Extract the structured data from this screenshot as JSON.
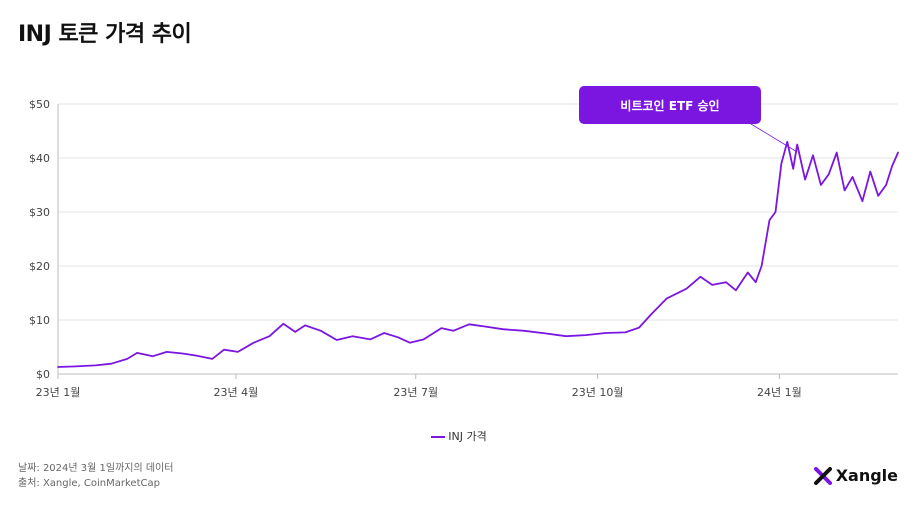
{
  "title": "INJ 토큰 가격 추이",
  "legend": {
    "label": "INJ 가격"
  },
  "footnotes": {
    "date": "날짜: 2024년 3월 1일까지의 데이터",
    "source": "출처: Xangle, CoinMarketCap"
  },
  "brand": {
    "name": "Xangle",
    "icon": "x-logo-icon"
  },
  "colors": {
    "series": "#7a16e0",
    "callout": "#7a16e0",
    "grid": "#e6e6e6",
    "axis": "#bdbdbd"
  },
  "chart_data": {
    "type": "line",
    "title": "INJ 토큰 가격 추이",
    "xlabel": "",
    "ylabel": "",
    "ylim": [
      0,
      50
    ],
    "grid": true,
    "legend_position": "bottom",
    "y_ticks": [
      0,
      10,
      20,
      30,
      40,
      50
    ],
    "y_tick_labels": [
      "$0",
      "$10",
      "$20",
      "$30",
      "$40",
      "$50"
    ],
    "x_tick_labels": [
      {
        "x": "2023-01-01",
        "label": "23년 1월"
      },
      {
        "x": "2023-04-01",
        "label": "23년 4월"
      },
      {
        "x": "2023-07-01",
        "label": "23년 7월"
      },
      {
        "x": "2023-10-01",
        "label": "23년 10월"
      },
      {
        "x": "2024-01-01",
        "label": "24년 1월"
      }
    ],
    "x_range": [
      "2023-01-01",
      "2024-03-01"
    ],
    "annotation": {
      "text": "비트코인 ETF 승인",
      "x": "2024-01-10",
      "y": 40
    },
    "series": [
      {
        "name": "INJ 가격",
        "points": [
          [
            "2023-01-01",
            1.3
          ],
          [
            "2023-01-10",
            1.4
          ],
          [
            "2023-01-20",
            1.6
          ],
          [
            "2023-01-28",
            1.9
          ],
          [
            "2023-02-05",
            2.8
          ],
          [
            "2023-02-10",
            3.9
          ],
          [
            "2023-02-18",
            3.3
          ],
          [
            "2023-02-25",
            4.1
          ],
          [
            "2023-03-05",
            3.8
          ],
          [
            "2023-03-12",
            3.4
          ],
          [
            "2023-03-20",
            2.8
          ],
          [
            "2023-03-26",
            4.5
          ],
          [
            "2023-04-02",
            4.1
          ],
          [
            "2023-04-10",
            5.8
          ],
          [
            "2023-04-18",
            7.0
          ],
          [
            "2023-04-25",
            9.3
          ],
          [
            "2023-05-01",
            7.8
          ],
          [
            "2023-05-06",
            9.0
          ],
          [
            "2023-05-14",
            8.0
          ],
          [
            "2023-05-22",
            6.3
          ],
          [
            "2023-05-30",
            7.0
          ],
          [
            "2023-06-08",
            6.4
          ],
          [
            "2023-06-15",
            7.6
          ],
          [
            "2023-06-22",
            6.8
          ],
          [
            "2023-06-28",
            5.8
          ],
          [
            "2023-07-05",
            6.4
          ],
          [
            "2023-07-14",
            8.5
          ],
          [
            "2023-07-20",
            8.0
          ],
          [
            "2023-07-28",
            9.2
          ],
          [
            "2023-08-05",
            8.8
          ],
          [
            "2023-08-14",
            8.3
          ],
          [
            "2023-08-25",
            8.0
          ],
          [
            "2023-09-05",
            7.5
          ],
          [
            "2023-09-15",
            7.0
          ],
          [
            "2023-09-25",
            7.2
          ],
          [
            "2023-10-05",
            7.6
          ],
          [
            "2023-10-15",
            7.7
          ],
          [
            "2023-10-22",
            8.6
          ],
          [
            "2023-10-28",
            11.0
          ],
          [
            "2023-11-05",
            14.0
          ],
          [
            "2023-11-15",
            15.8
          ],
          [
            "2023-11-22",
            18.0
          ],
          [
            "2023-11-28",
            16.5
          ],
          [
            "2023-12-05",
            17.0
          ],
          [
            "2023-12-10",
            15.5
          ],
          [
            "2023-12-16",
            18.8
          ],
          [
            "2023-12-20",
            17.0
          ],
          [
            "2023-12-23",
            20.0
          ],
          [
            "2023-12-27",
            28.5
          ],
          [
            "2023-12-30",
            30.0
          ],
          [
            "2024-01-02",
            39.0
          ],
          [
            "2024-01-05",
            43.0
          ],
          [
            "2024-01-08",
            38.0
          ],
          [
            "2024-01-10",
            42.5
          ],
          [
            "2024-01-14",
            36.0
          ],
          [
            "2024-01-18",
            40.5
          ],
          [
            "2024-01-22",
            35.0
          ],
          [
            "2024-01-26",
            37.0
          ],
          [
            "2024-01-30",
            41.0
          ],
          [
            "2024-02-03",
            34.0
          ],
          [
            "2024-02-07",
            36.5
          ],
          [
            "2024-02-12",
            32.0
          ],
          [
            "2024-02-16",
            37.5
          ],
          [
            "2024-02-20",
            33.0
          ],
          [
            "2024-02-24",
            35.0
          ],
          [
            "2024-02-27",
            38.5
          ],
          [
            "2024-03-01",
            41.0
          ]
        ]
      }
    ]
  }
}
